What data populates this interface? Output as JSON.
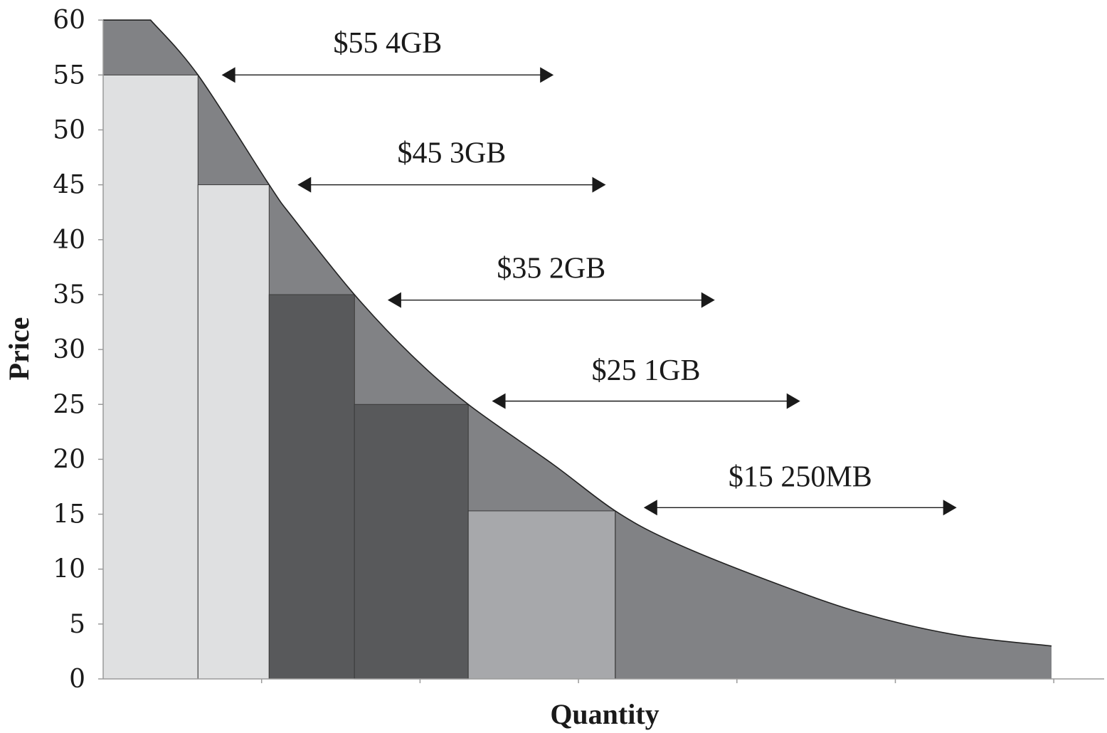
{
  "chart_data": {
    "type": "area",
    "xlabel": "Quantity",
    "ylabel": "Price",
    "ylim": [
      0,
      60
    ],
    "yticks": [
      0,
      5,
      10,
      15,
      20,
      25,
      30,
      35,
      40,
      45,
      50,
      55,
      60
    ],
    "grid": false,
    "demand_curve": [
      {
        "q": 0,
        "p": 60
      },
      {
        "q": 0.5,
        "p": 60
      },
      {
        "q": 1.0,
        "p": 55
      },
      {
        "q": 1.75,
        "p": 45
      },
      {
        "q": 2.0,
        "p": 42
      },
      {
        "q": 2.65,
        "p": 35
      },
      {
        "q": 3.25,
        "p": 29.5
      },
      {
        "q": 3.85,
        "p": 25
      },
      {
        "q": 4.75,
        "p": 19.5
      },
      {
        "q": 5.4,
        "p": 15.3
      },
      {
        "q": 6.0,
        "p": 12.5
      },
      {
        "q": 7.0,
        "p": 9
      },
      {
        "q": 8.0,
        "p": 6
      },
      {
        "q": 9.0,
        "p": 4
      },
      {
        "q": 10.0,
        "p": 3
      }
    ],
    "price_bars": [
      {
        "q_start": 0,
        "q_end": 1.0,
        "price": 55,
        "color": "#dfe0e1"
      },
      {
        "q_start": 1.0,
        "q_end": 1.75,
        "price": 45,
        "color": "#dfe0e1"
      },
      {
        "q_start": 1.75,
        "q_end": 2.65,
        "price": 35,
        "color": "#58595b"
      },
      {
        "q_start": 2.65,
        "q_end": 3.85,
        "price": 25,
        "color": "#58595b"
      },
      {
        "q_start": 3.85,
        "q_end": 5.4,
        "price": 15.3,
        "color": "#a7a8ab"
      }
    ],
    "annotations": [
      {
        "label": "$55 4GB",
        "price": 55,
        "q_start": 1.25,
        "q_end": 4.75,
        "label_y": 58
      },
      {
        "label": "$45 3GB",
        "price": 45,
        "q_start": 2.05,
        "q_end": 5.3,
        "label_y": 48
      },
      {
        "label": "$35 2GB",
        "price": 34.5,
        "q_start": 3.0,
        "q_end": 6.45,
        "label_y": 37.5
      },
      {
        "label": "$25 1GB",
        "price": 25.3,
        "q_start": 4.1,
        "q_end": 7.35,
        "label_y": 28.2
      },
      {
        "label": "$15 250MB",
        "price": 15.6,
        "q_start": 5.7,
        "q_end": 9.0,
        "label_y": 18.5
      }
    ],
    "colors": {
      "surplus_area": "#818285",
      "axis": "#9a9a9a",
      "curve": "#222222",
      "arrow": "#1a1a1a"
    }
  }
}
